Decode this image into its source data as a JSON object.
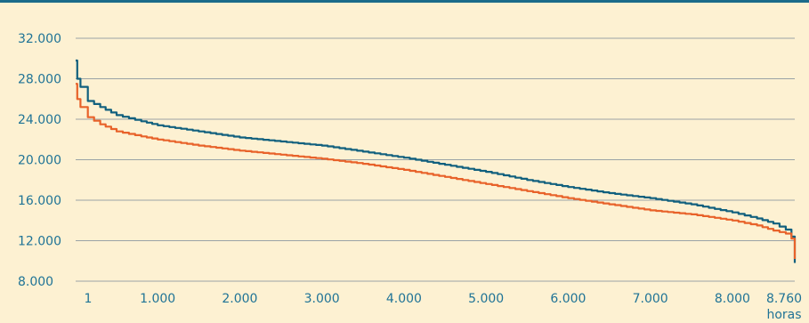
{
  "chart_data": {
    "type": "line",
    "xlabel": "horas",
    "ylabel": "",
    "xlim": [
      1,
      8760
    ],
    "ylim": [
      8000,
      32000
    ],
    "grid": "horizontal",
    "colors": {
      "background": "#fdf1d2",
      "top_border": "#1b6b8a",
      "tick_text": "#1f7396",
      "grid": "#9aa3a6"
    },
    "x_tick_values": [
      1,
      1000,
      2000,
      3000,
      4000,
      5000,
      6000,
      7000,
      8000,
      8760
    ],
    "x_tick_labels": [
      "1",
      "1.000",
      "2.000",
      "3.000",
      "4.000",
      "5.000",
      "6.000",
      "7.000",
      "8.000",
      "8.760"
    ],
    "y_tick_values": [
      8000,
      12000,
      16000,
      20000,
      24000,
      28000,
      32000
    ],
    "y_tick_labels": [
      "8.000",
      "12.000",
      "16.000",
      "20.000",
      "24.000",
      "28.000",
      "32.000"
    ],
    "series": [
      {
        "color": "#11607e",
        "x": [
          1,
          20,
          60,
          150,
          300,
          500,
          800,
          1000,
          1500,
          2000,
          2500,
          3000,
          3500,
          4000,
          4500,
          5000,
          5500,
          6000,
          6500,
          7000,
          7500,
          8000,
          8300,
          8500,
          8650,
          8720,
          8760
        ],
        "y": [
          29800,
          28000,
          27200,
          25800,
          25200,
          24400,
          23800,
          23400,
          22800,
          22200,
          21800,
          21400,
          20800,
          20200,
          19500,
          18800,
          18000,
          17300,
          16700,
          16200,
          15600,
          14800,
          14200,
          13700,
          13100,
          12400,
          9800
        ]
      },
      {
        "color": "#e8622a",
        "x": [
          1,
          20,
          60,
          150,
          300,
          500,
          800,
          1000,
          1500,
          2000,
          2500,
          3000,
          3500,
          4000,
          4500,
          5000,
          5500,
          6000,
          6500,
          7000,
          7500,
          8000,
          8300,
          8500,
          8650,
          8720,
          8760
        ],
        "y": [
          27500,
          26000,
          25200,
          24200,
          23500,
          22800,
          22300,
          22000,
          21400,
          20900,
          20500,
          20100,
          19600,
          19000,
          18300,
          17600,
          16900,
          16200,
          15600,
          15000,
          14600,
          14000,
          13500,
          13000,
          12700,
          12200,
          10200
        ]
      }
    ]
  }
}
